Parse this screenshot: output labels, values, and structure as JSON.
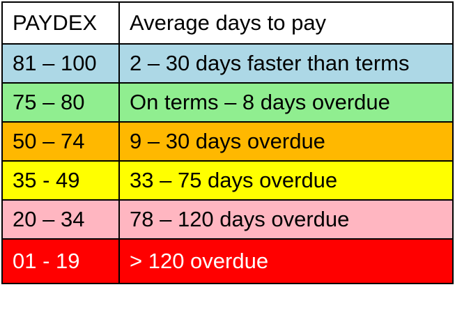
{
  "table": {
    "headers": [
      "PAYDEX",
      "Average days to pay"
    ],
    "header_color": "#ffffff",
    "rows": [
      {
        "range": "81 – 100",
        "description": "2 – 30 days faster than terms",
        "color": "#add8e6",
        "text_color": "#000000"
      },
      {
        "range": "75 – 80",
        "description": "On terms – 8 days overdue",
        "color": "#90ee90",
        "text_color": "#000000"
      },
      {
        "range": "50 – 74",
        "description": "9 – 30 days overdue",
        "color": "#ffb800",
        "text_color": "#000000"
      },
      {
        "range": "35 - 49",
        "description": "33 – 75 days overdue",
        "color": "#ffff00",
        "text_color": "#000000"
      },
      {
        "range": "20 – 34",
        "description": "78 – 120 days overdue",
        "color": "#ffb6c1",
        "text_color": "#000000"
      },
      {
        "range": "01 - 19",
        "description": "> 120 overdue",
        "color": "#ff0000",
        "text_color": "#ffffff"
      }
    ]
  }
}
